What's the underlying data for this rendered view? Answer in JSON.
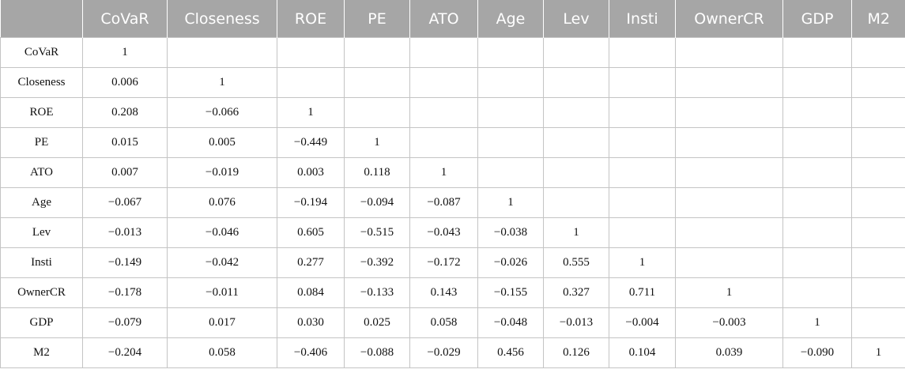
{
  "table": {
    "columns": [
      "",
      "CoVaR",
      "Closeness",
      "ROE",
      "PE",
      "ATO",
      "Age",
      "Lev",
      "Insti",
      "OwnerCR",
      "GDP",
      "M2"
    ],
    "rows": [
      {
        "label": "CoVaR",
        "cells": [
          "1",
          "",
          "",
          "",
          "",
          "",
          "",
          "",
          "",
          "",
          ""
        ]
      },
      {
        "label": "Closeness",
        "cells": [
          "0.006",
          "1",
          "",
          "",
          "",
          "",
          "",
          "",
          "",
          "",
          ""
        ]
      },
      {
        "label": "ROE",
        "cells": [
          "0.208",
          "−0.066",
          "1",
          "",
          "",
          "",
          "",
          "",
          "",
          "",
          ""
        ]
      },
      {
        "label": "PE",
        "cells": [
          "0.015",
          "0.005",
          "−0.449",
          "1",
          "",
          "",
          "",
          "",
          "",
          "",
          ""
        ]
      },
      {
        "label": "ATO",
        "cells": [
          "0.007",
          "−0.019",
          "0.003",
          "0.118",
          "1",
          "",
          "",
          "",
          "",
          "",
          ""
        ]
      },
      {
        "label": "Age",
        "cells": [
          "−0.067",
          "0.076",
          "−0.194",
          "−0.094",
          "−0.087",
          "1",
          "",
          "",
          "",
          "",
          ""
        ]
      },
      {
        "label": "Lev",
        "cells": [
          "−0.013",
          "−0.046",
          "0.605",
          "−0.515",
          "−0.043",
          "−0.038",
          "1",
          "",
          "",
          "",
          ""
        ]
      },
      {
        "label": "Insti",
        "cells": [
          "−0.149",
          "−0.042",
          "0.277",
          "−0.392",
          "−0.172",
          "−0.026",
          "0.555",
          "1",
          "",
          "",
          ""
        ]
      },
      {
        "label": "OwnerCR",
        "cells": [
          "−0.178",
          "−0.011",
          "0.084",
          "−0.133",
          "0.143",
          "−0.155",
          "0.327",
          "0.711",
          "1",
          "",
          ""
        ]
      },
      {
        "label": "GDP",
        "cells": [
          "−0.079",
          "0.017",
          "0.030",
          "0.025",
          "0.058",
          "−0.048",
          "−0.013",
          "−0.004",
          "−0.003",
          "1",
          ""
        ]
      },
      {
        "label": "M2",
        "cells": [
          "−0.204",
          "0.058",
          "−0.406",
          "−0.088",
          "−0.029",
          "0.456",
          "0.126",
          "0.104",
          "0.039",
          "−0.090",
          "1"
        ]
      }
    ]
  }
}
